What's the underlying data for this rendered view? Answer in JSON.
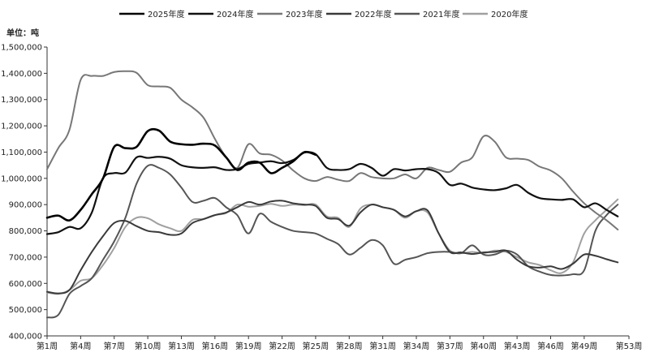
{
  "chart_data": {
    "type": "line",
    "unit_label": "单位：吨",
    "ylim": [
      400000,
      1500000
    ],
    "y_ticks": [
      400000,
      500000,
      600000,
      700000,
      800000,
      900000,
      1000000,
      1100000,
      1200000,
      1300000,
      1400000,
      1500000
    ],
    "y_tick_labels": [
      "400,000",
      "500,000",
      "600,000",
      "700,000",
      "800,000",
      "900,000",
      "1,000,000",
      "1,100,000",
      "1,200,000",
      "1,300,000",
      "1,400,000",
      "1,500,000"
    ],
    "xlim": [
      1,
      53
    ],
    "x_ticks": [
      1,
      4,
      7,
      10,
      13,
      16,
      19,
      22,
      25,
      28,
      31,
      34,
      37,
      40,
      43,
      46,
      49,
      53
    ],
    "x_tick_labels": [
      "第1周",
      "第4周",
      "第7周",
      "第10周",
      "第13周",
      "第16周",
      "第19周",
      "第22周",
      "第25周",
      "第28周",
      "第31周",
      "第34周",
      "第37周",
      "第40周",
      "第43周",
      "第46周",
      "第49周",
      "第53周"
    ],
    "grid": false,
    "legend_position": "top",
    "series": [
      {
        "name": "2025年度",
        "color": "#000000",
        "width": 2.6,
        "x": [
          1,
          2,
          3,
          4,
          5,
          6,
          7,
          8,
          9,
          10,
          11,
          12,
          13,
          14,
          15,
          16,
          17,
          18,
          19,
          20,
          21,
          22,
          23,
          24,
          25
        ],
        "y": [
          850000,
          858000,
          840000,
          880000,
          940000,
          1000000,
          1120000,
          1115000,
          1120000,
          1180000,
          1182000,
          1140000,
          1130000,
          1128000,
          1132000,
          1125000,
          1080000,
          1032000,
          1060000,
          1060000,
          1020000,
          1040000,
          1065000,
          1100000,
          1090000
        ]
      },
      {
        "name": "2024年度",
        "color": "#111111",
        "width": 2.2,
        "x": [
          1,
          2,
          3,
          4,
          5,
          6,
          7,
          8,
          9,
          10,
          11,
          12,
          13,
          14,
          15,
          16,
          17,
          18,
          19,
          20,
          21,
          22,
          23,
          24,
          25,
          26,
          27,
          28,
          29,
          30,
          31,
          32,
          33,
          34,
          35,
          36,
          37,
          38,
          39,
          40,
          41,
          42,
          43,
          44,
          45,
          46,
          47,
          48,
          49,
          50,
          51,
          52
        ],
        "y": [
          788000,
          795000,
          815000,
          810000,
          870000,
          1000000,
          1020000,
          1022000,
          1080000,
          1078000,
          1082000,
          1075000,
          1050000,
          1042000,
          1040000,
          1042000,
          1032000,
          1035000,
          1055000,
          1060000,
          1065000,
          1058000,
          1070000,
          1098000,
          1092000,
          1040000,
          1032000,
          1035000,
          1055000,
          1040000,
          1010000,
          1035000,
          1030000,
          1035000,
          1035000,
          1020000,
          975000,
          980000,
          965000,
          958000,
          955000,
          962000,
          975000,
          945000,
          925000,
          920000,
          918000,
          920000,
          890000,
          905000,
          880000,
          855000
        ]
      },
      {
        "name": "2023年度",
        "color": "#777777",
        "width": 2.0,
        "x": [
          1,
          2,
          3,
          4,
          5,
          6,
          7,
          8,
          9,
          10,
          11,
          12,
          13,
          14,
          15,
          16,
          17,
          18,
          19,
          20,
          21,
          22,
          23,
          24,
          25,
          26,
          27,
          28,
          29,
          30,
          31,
          32,
          33,
          34,
          35,
          36,
          37,
          38,
          39,
          40,
          41,
          42,
          43,
          44,
          45,
          46,
          47,
          48,
          49,
          50,
          51,
          52
        ],
        "y": [
          1035000,
          1115000,
          1185000,
          1375000,
          1390000,
          1390000,
          1405000,
          1408000,
          1402000,
          1355000,
          1350000,
          1345000,
          1300000,
          1270000,
          1230000,
          1150000,
          1080000,
          1040000,
          1130000,
          1095000,
          1090000,
          1068000,
          1030000,
          1000000,
          990000,
          1005000,
          995000,
          990000,
          1020000,
          1005000,
          1000000,
          1000000,
          1015000,
          1000000,
          1040000,
          1032000,
          1025000,
          1060000,
          1080000,
          1160000,
          1140000,
          1080000,
          1075000,
          1070000,
          1045000,
          1030000,
          1000000,
          950000,
          905000,
          870000,
          840000,
          805000
        ]
      },
      {
        "name": "2022年度",
        "color": "#3a3a3a",
        "width": 2.0,
        "x": [
          1,
          2,
          3,
          4,
          5,
          6,
          7,
          8,
          9,
          10,
          11,
          12,
          13,
          14,
          15,
          16,
          17,
          18,
          19,
          20,
          21,
          22,
          23,
          24,
          25,
          26,
          27,
          28,
          29,
          30,
          31,
          32,
          33,
          34,
          35,
          36,
          37,
          38,
          39,
          40,
          41,
          42,
          43,
          44,
          45,
          46,
          47,
          48,
          49,
          50,
          51,
          52
        ],
        "y": [
          568000,
          562000,
          575000,
          650000,
          720000,
          780000,
          830000,
          838000,
          818000,
          800000,
          795000,
          785000,
          790000,
          830000,
          845000,
          860000,
          870000,
          890000,
          910000,
          900000,
          912000,
          915000,
          905000,
          900000,
          895000,
          850000,
          845000,
          820000,
          870000,
          900000,
          890000,
          880000,
          855000,
          875000,
          878000,
          790000,
          720000,
          718000,
          712000,
          718000,
          720000,
          725000,
          690000,
          665000,
          660000,
          665000,
          655000,
          675000,
          710000,
          705000,
          692000,
          680000
        ]
      },
      {
        "name": "2021年度",
        "color": "#555555",
        "width": 2.0,
        "x": [
          1,
          2,
          3,
          4,
          5,
          6,
          7,
          8,
          9,
          10,
          11,
          12,
          13,
          14,
          15,
          16,
          17,
          18,
          19,
          20,
          21,
          22,
          23,
          24,
          25,
          26,
          27,
          28,
          29,
          30,
          31,
          32,
          33,
          34,
          35,
          36,
          37,
          38,
          39,
          40,
          41,
          42,
          43,
          44,
          45,
          46,
          47,
          48,
          49,
          50,
          51,
          52
        ],
        "y": [
          470000,
          480000,
          560000,
          590000,
          620000,
          690000,
          760000,
          850000,
          980000,
          1048000,
          1040000,
          1015000,
          965000,
          910000,
          915000,
          925000,
          890000,
          860000,
          790000,
          865000,
          835000,
          815000,
          800000,
          795000,
          790000,
          770000,
          750000,
          710000,
          735000,
          765000,
          745000,
          675000,
          690000,
          700000,
          715000,
          720000,
          720000,
          715000,
          745000,
          710000,
          710000,
          725000,
          710000,
          665000,
          645000,
          632000,
          630000,
          635000,
          650000,
          800000,
          860000,
          900000
        ]
      },
      {
        "name": "2020年度",
        "color": "#a0a0a0",
        "width": 2.0,
        "x": [
          1,
          2,
          3,
          4,
          5,
          6,
          7,
          8,
          9,
          10,
          11,
          12,
          13,
          14,
          15,
          16,
          17,
          18,
          19,
          20,
          21,
          22,
          23,
          24,
          25,
          26,
          27,
          28,
          29,
          30,
          31,
          32,
          33,
          34,
          35,
          36,
          37,
          38,
          39,
          40,
          41,
          42,
          43,
          44,
          45,
          46,
          47,
          48,
          49,
          50,
          51,
          52
        ],
        "y": [
          565000,
          560000,
          575000,
          610000,
          620000,
          670000,
          735000,
          815000,
          850000,
          848000,
          825000,
          810000,
          800000,
          842000,
          845000,
          860000,
          868000,
          900000,
          892000,
          895000,
          903000,
          895000,
          900000,
          898000,
          900000,
          855000,
          850000,
          815000,
          885000,
          900000,
          890000,
          880000,
          850000,
          875000,
          870000,
          790000,
          725000,
          715000,
          720000,
          715000,
          725000,
          720000,
          700000,
          680000,
          670000,
          650000,
          640000,
          680000,
          790000,
          840000,
          880000,
          920000
        ]
      }
    ]
  }
}
